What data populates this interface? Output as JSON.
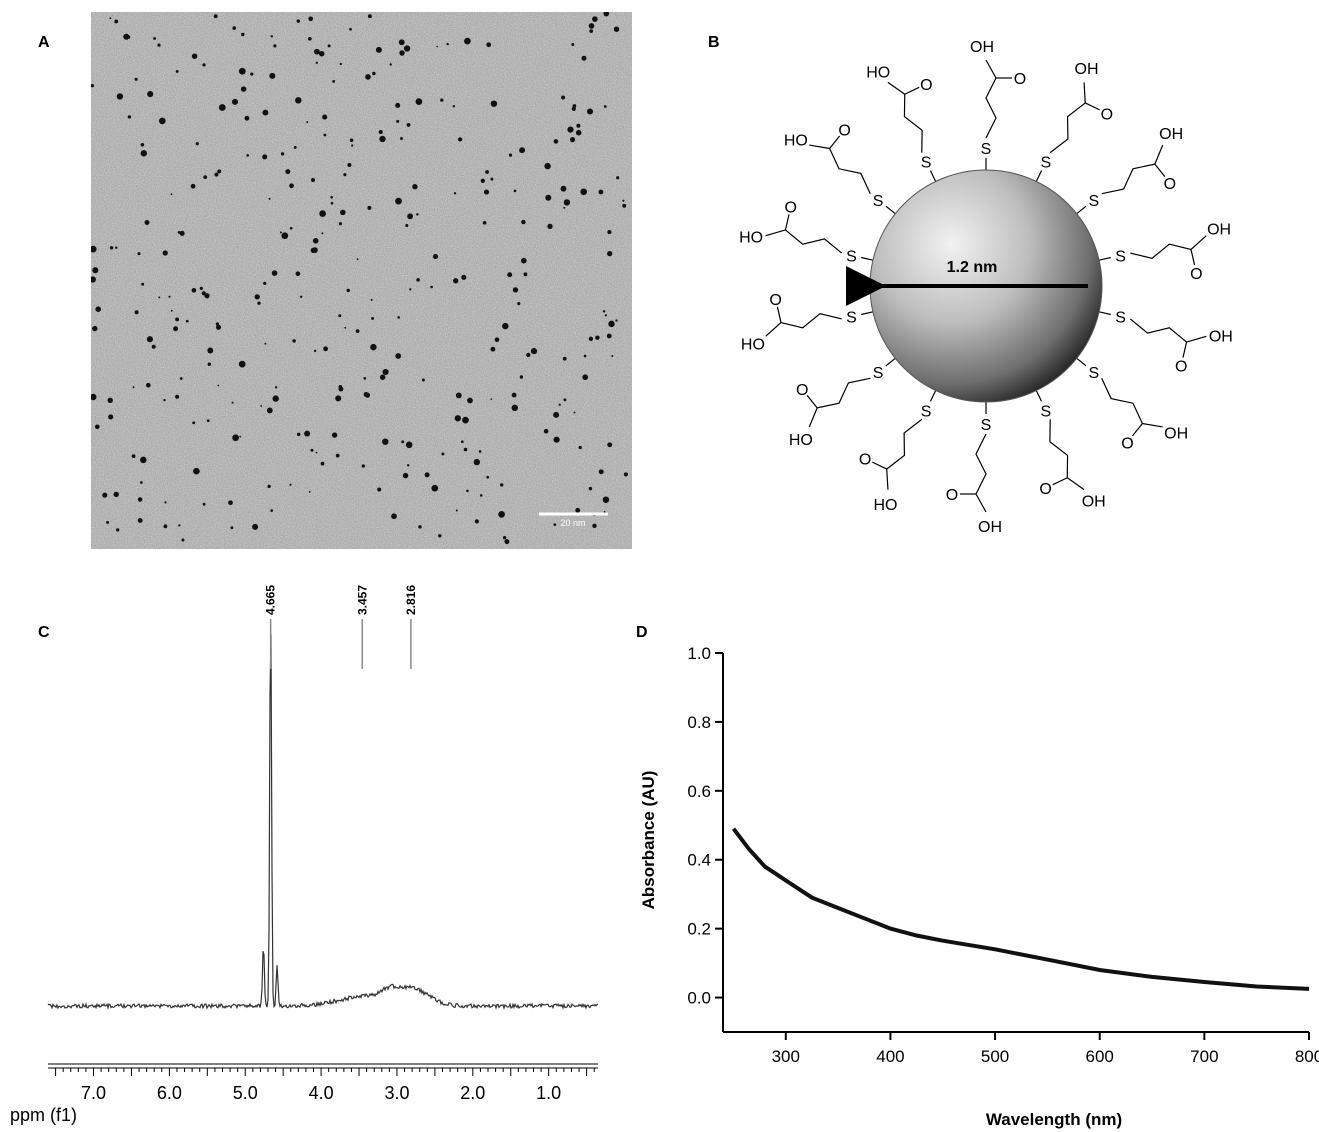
{
  "figure": {
    "panels": {
      "a": "A",
      "b": "B",
      "c": "C",
      "d": "D"
    },
    "tem": {
      "scale_bar_label": "20 nm"
    },
    "molecule": {
      "diameter_label": "1.2 nm",
      "ligand_count": 14,
      "s_label": "S",
      "oh_label": "OH",
      "ho_label": "HO",
      "o_label": "O"
    },
    "nmr": {
      "x_axis_label": "ppm (f1)",
      "ticks": [
        "7.0",
        "6.0",
        "5.0",
        "4.0",
        "3.0",
        "2.0",
        "1.0"
      ],
      "peak_labels": [
        "4.665",
        "3.457",
        "2.816"
      ]
    }
  },
  "chart_data": {
    "type": "line",
    "title": "",
    "xlabel": "Wavelength (nm)",
    "ylabel": "Absorbance (AU)",
    "xlim": [
      240,
      800
    ],
    "ylim": [
      -0.1,
      1.0
    ],
    "x_ticks": [
      300,
      400,
      500,
      600,
      700,
      800
    ],
    "y_ticks": [
      "0.0",
      "0.2",
      "0.4",
      "0.6",
      "0.8",
      "1.0"
    ],
    "grid": false,
    "series": [
      {
        "x": [
          250,
          265,
          280,
          300,
          325,
          350,
          375,
          400,
          425,
          450,
          500,
          550,
          600,
          650,
          700,
          750,
          800
        ],
        "values": [
          0.49,
          0.43,
          0.38,
          0.34,
          0.29,
          0.26,
          0.23,
          0.2,
          0.18,
          0.165,
          0.14,
          0.11,
          0.08,
          0.06,
          0.045,
          0.032,
          0.025
        ]
      }
    ]
  }
}
